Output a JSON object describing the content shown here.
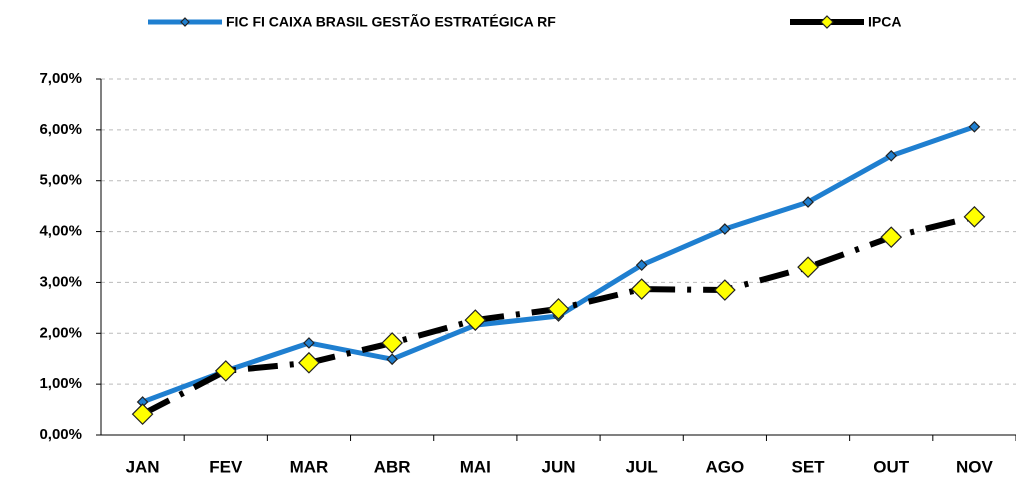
{
  "chart_data": {
    "type": "line",
    "categories": [
      "JAN",
      "FEV",
      "MAR",
      "ABR",
      "MAI",
      "JUN",
      "JUL",
      "AGO",
      "SET",
      "OUT",
      "NOV"
    ],
    "series": [
      {
        "name": "FIC FI CAIXA BRASIL GESTÃO ESTRATÉGICA RF",
        "color": "#1f7fd0",
        "values": [
          0.65,
          1.26,
          1.81,
          1.49,
          2.16,
          2.34,
          3.34,
          4.05,
          4.58,
          5.49,
          6.06
        ]
      },
      {
        "name": "IPCA",
        "color": "#000000",
        "values": [
          0.41,
          1.26,
          1.42,
          1.81,
          2.26,
          2.48,
          2.87,
          2.85,
          3.3,
          3.89,
          4.29
        ]
      }
    ],
    "ylim": [
      0,
      7
    ],
    "yticks": [
      {
        "value": 0,
        "label": "0,00%"
      },
      {
        "value": 1,
        "label": "1,00%"
      },
      {
        "value": 2,
        "label": "2,00%"
      },
      {
        "value": 3,
        "label": "3,00%"
      },
      {
        "value": 4,
        "label": "4,00%"
      },
      {
        "value": 5,
        "label": "5,00%"
      },
      {
        "value": 6,
        "label": "6,00%"
      },
      {
        "value": 7,
        "label": "7,00%"
      }
    ],
    "grid": true,
    "legend": "top"
  }
}
